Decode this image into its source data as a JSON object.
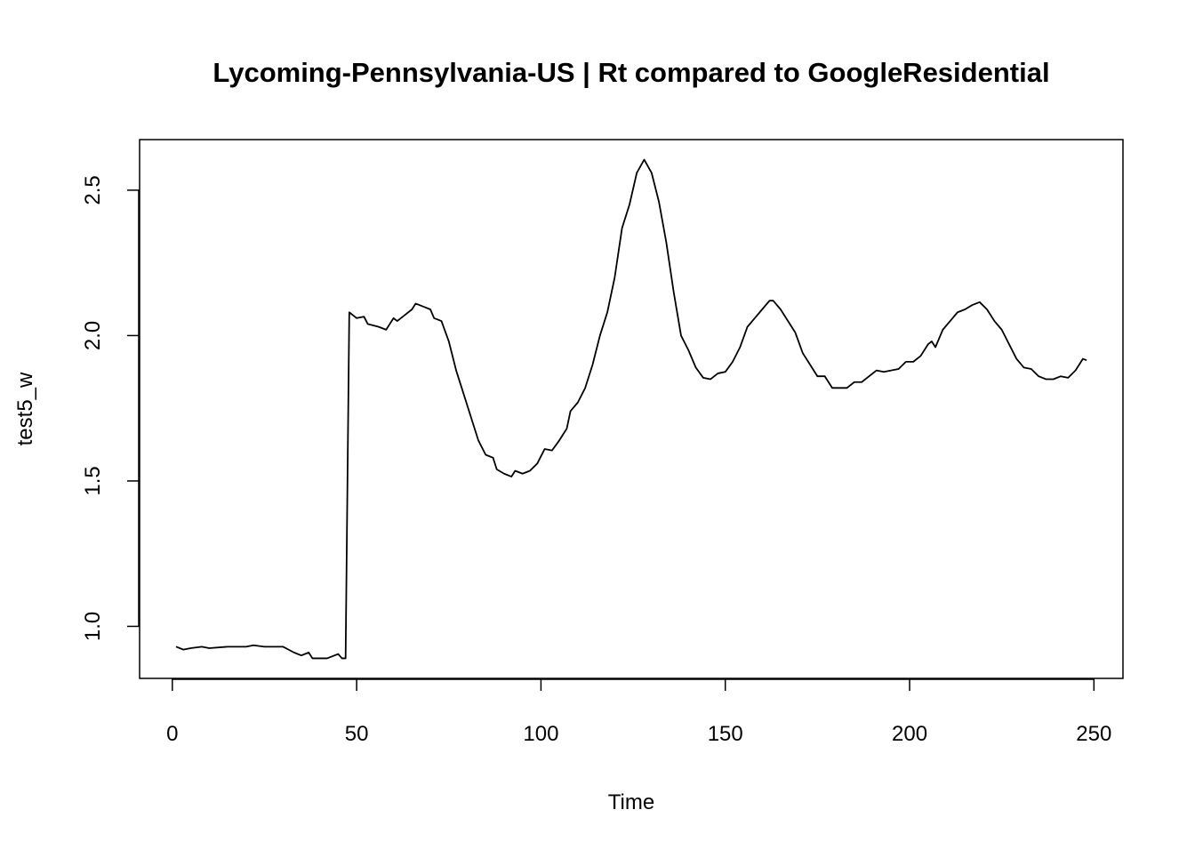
{
  "chart_data": {
    "type": "line",
    "title": "Lycoming-Pennsylvania-US | Rt compared to GoogleResidential",
    "x_label": "Time",
    "y_label": "test5_w",
    "color": "#000000",
    "x": [
      1,
      3,
      5,
      8,
      10,
      15,
      20,
      22,
      25,
      30,
      33,
      35,
      37,
      38,
      42,
      44,
      45,
      46,
      47,
      48,
      50,
      52,
      53,
      56,
      58,
      60,
      61,
      63,
      65,
      66,
      68,
      70,
      71,
      73,
      75,
      77,
      79,
      81,
      83,
      85,
      87,
      88,
      90,
      92,
      93,
      95,
      97,
      99,
      101,
      103,
      105,
      107,
      108,
      110,
      112,
      114,
      116,
      118,
      120,
      122,
      124,
      126,
      128,
      130,
      132,
      134,
      136,
      138,
      140,
      142,
      144,
      146,
      148,
      150,
      152,
      154,
      156,
      158,
      160,
      162,
      163,
      165,
      167,
      169,
      171,
      173,
      175,
      177,
      179,
      181,
      183,
      185,
      187,
      189,
      191,
      193,
      195,
      197,
      199,
      201,
      203,
      205,
      206,
      207,
      209,
      211,
      213,
      215,
      217,
      219,
      221,
      223,
      225,
      227,
      229,
      231,
      233,
      235,
      237,
      239,
      241,
      243,
      245,
      247,
      248
    ],
    "values": [
      0.93,
      0.92,
      0.925,
      0.93,
      0.925,
      0.93,
      0.93,
      0.935,
      0.93,
      0.93,
      0.91,
      0.9,
      0.91,
      0.89,
      0.89,
      0.9,
      0.905,
      0.89,
      0.89,
      2.08,
      2.06,
      2.065,
      2.04,
      2.03,
      2.02,
      2.06,
      2.05,
      2.07,
      2.09,
      2.11,
      2.1,
      2.09,
      2.06,
      2.05,
      1.98,
      1.88,
      1.8,
      1.72,
      1.64,
      1.59,
      1.58,
      1.54,
      1.525,
      1.515,
      1.535,
      1.525,
      1.535,
      1.56,
      1.61,
      1.605,
      1.64,
      1.68,
      1.74,
      1.77,
      1.82,
      1.9,
      2.0,
      2.08,
      2.2,
      2.37,
      2.45,
      2.56,
      2.605,
      2.56,
      2.46,
      2.32,
      2.15,
      2.0,
      1.95,
      1.89,
      1.855,
      1.85,
      1.87,
      1.875,
      1.91,
      1.96,
      2.03,
      2.06,
      2.09,
      2.12,
      2.12,
      2.09,
      2.05,
      2.01,
      1.94,
      1.9,
      1.86,
      1.86,
      1.82,
      1.82,
      1.82,
      1.84,
      1.84,
      1.86,
      1.88,
      1.875,
      1.88,
      1.885,
      1.91,
      1.91,
      1.93,
      1.97,
      1.98,
      1.96,
      2.02,
      2.05,
      2.08,
      2.09,
      2.105,
      2.115,
      2.09,
      2.05,
      2.02,
      1.97,
      1.92,
      1.89,
      1.885,
      1.86,
      1.85,
      1.85,
      1.86,
      1.855,
      1.88,
      1.92,
      1.915
    ],
    "xlim": [
      -8.88,
      257.88
    ],
    "ylim": [
      0.821,
      2.674
    ],
    "xticks": [
      0,
      50,
      100,
      150,
      200,
      250
    ],
    "yticks": [
      {
        "value": 1.0,
        "label": "1.0"
      },
      1.5,
      {
        "value": 2.0,
        "label": "2.0"
      },
      2.5
    ]
  }
}
